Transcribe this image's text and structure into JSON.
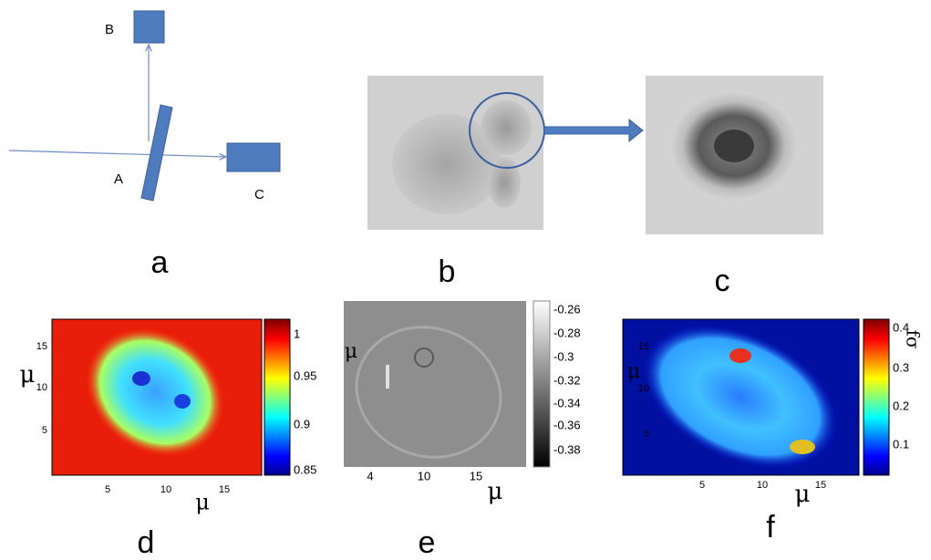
{
  "panels": {
    "a": {
      "label": "a",
      "A": "A",
      "B": "B",
      "C": "C"
    },
    "b": {
      "label": "b"
    },
    "c": {
      "label": "c"
    },
    "d": {
      "label": "d",
      "x_label": "μ",
      "y_label": "μ",
      "x_ticks": [
        "5",
        "10",
        "15"
      ],
      "y_ticks": [
        "15",
        "10",
        "5"
      ],
      "colorbar_ticks": [
        "1",
        "0.95",
        "0.9",
        "0.85"
      ]
    },
    "e": {
      "label": "e",
      "x_label": "μ",
      "y_label": "μ",
      "x_ticks": [
        "4",
        "10",
        "15"
      ],
      "colorbar_ticks": [
        "-0.26",
        "-0.28",
        "-0.3",
        "-0.32",
        "-0.34",
        "-0.36",
        "-0.38"
      ]
    },
    "f": {
      "label": "f",
      "x_label": "μ",
      "y_label": "μ",
      "x_ticks": [
        "5",
        "10",
        "15"
      ],
      "y_ticks": [
        "15",
        "10",
        "5"
      ],
      "colorbar_ticks": [
        "0.4",
        "0.3",
        "0.2",
        "0.1"
      ],
      "colorbar_label": "fσ"
    }
  }
}
